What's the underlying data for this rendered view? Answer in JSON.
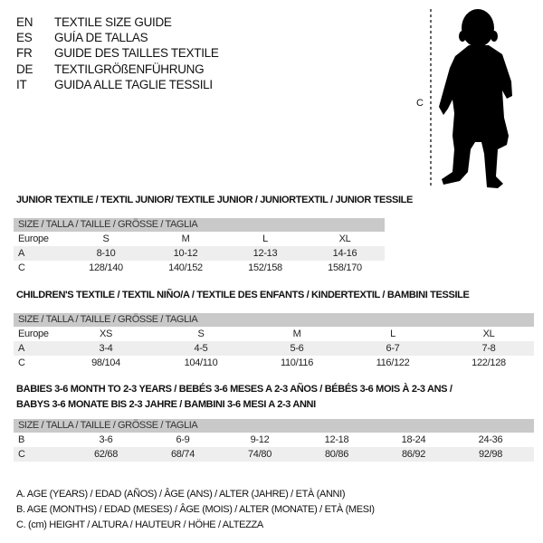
{
  "languages": [
    {
      "code": "EN",
      "title": "TEXTILE SIZE GUIDE"
    },
    {
      "code": "ES",
      "title": "GUÍA DE TALLAS"
    },
    {
      "code": "FR",
      "title": "GUIDE DES TAILLES TEXTILE"
    },
    {
      "code": "DE",
      "title": "TEXTILGRÖßENFÜHRUNG"
    },
    {
      "code": "IT",
      "title": "GUIDA ALLE TAGLIE TESSILI"
    }
  ],
  "figure": {
    "height_label": "C",
    "silhouette": "baby-silhouette"
  },
  "size_header": "SIZE / TALLA / TAILLE / GRÖSSE / TAGLIA",
  "tables": [
    {
      "title": "JUNIOR TEXTILE / TEXTIL JUNIOR/ TEXTILE JUNIOR / JUNIORTEXTIL / JUNIOR TESSILE",
      "rows": [
        {
          "label": "Europe",
          "cells": [
            "S",
            "M",
            "L",
            "XL"
          ]
        },
        {
          "label": "A",
          "cells": [
            "8-10",
            "10-12",
            "12-13",
            "14-16"
          ]
        },
        {
          "label": "C",
          "cells": [
            "128/140",
            "140/152",
            "152/158",
            "158/170"
          ]
        }
      ]
    },
    {
      "title": "CHILDREN'S TEXTILE / TEXTIL NIÑO/A / TEXTILE DES ENFANTS / KINDERTEXTIL / BAMBINI TESSILE",
      "rows": [
        {
          "label": "Europe",
          "cells": [
            "XS",
            "S",
            "M",
            "L",
            "XL"
          ]
        },
        {
          "label": "A",
          "cells": [
            "3-4",
            "4-5",
            "5-6",
            "6-7",
            "7-8"
          ]
        },
        {
          "label": "C",
          "cells": [
            "98/104",
            "104/110",
            "110/116",
            "116/122",
            "122/128"
          ]
        }
      ]
    },
    {
      "title": "BABIES 3-6 MONTH TO 2-3 YEARS / BEBÉS 3-6 MESES A 2-3 AÑOS / BÉBÉS 3-6 MOIS À 2-3 ANS /",
      "title2": "BABYS 3-6 MONATE BIS 2-3 JAHRE / BAMBINI 3-6 MESI A 2-3 ANNI",
      "rows": [
        {
          "label": "B",
          "cells": [
            "3-6",
            "6-9",
            "9-12",
            "12-18",
            "18-24",
            "24-36"
          ]
        },
        {
          "label": "C",
          "cells": [
            "62/68",
            "68/74",
            "74/80",
            "80/86",
            "86/92",
            "92/98"
          ]
        }
      ]
    }
  ],
  "legend": [
    "A. AGE (YEARS) / EDAD (AÑOS) / ÂGE (ANS) / ALTER (JAHRE) / ETÀ (ANNI)",
    "B. AGE (MONTHS) / EDAD (MESES) / ÂGE (MOIS) / ALTER (MONATE) / ETÀ (MESI)",
    "C. (cm) HEIGHT / ALTURA / HAUTEUR / HÖHE / ALTEZZA"
  ],
  "colors": {
    "header_bg": "#c9c9c9",
    "row_shade": "#eeeeee"
  }
}
